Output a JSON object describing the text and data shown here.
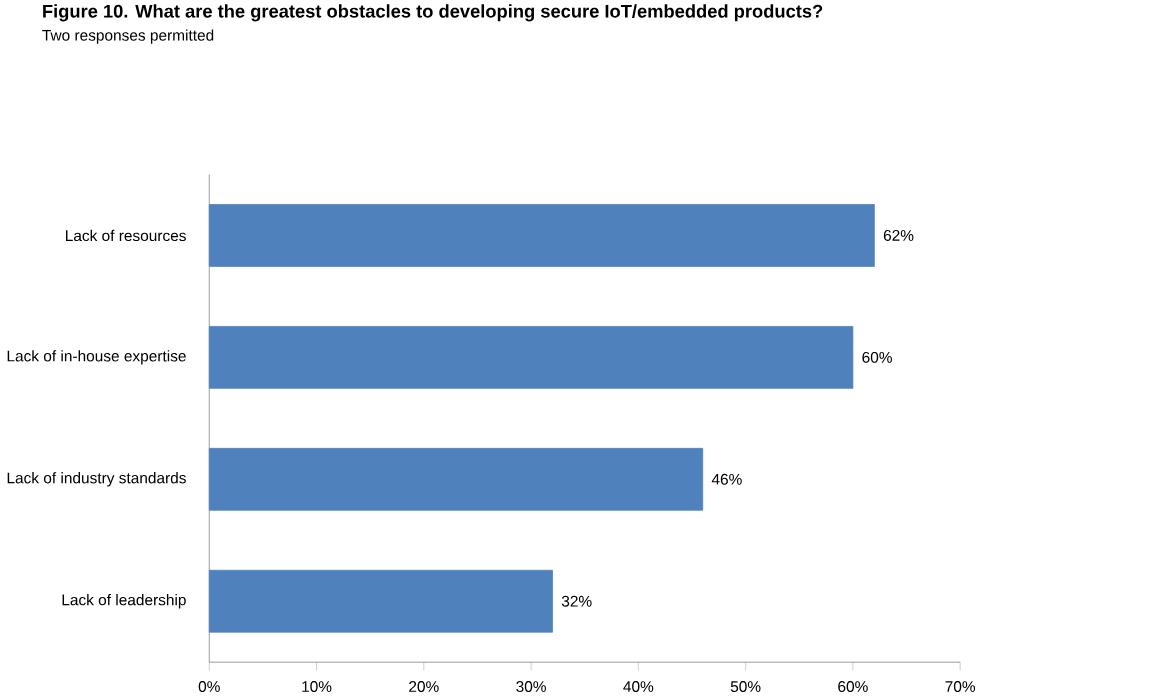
{
  "chart_data": {
    "type": "bar",
    "orientation": "horizontal",
    "title": "Figure 10. What are the greatest obstacles to developing secure IoT/embedded products?",
    "subtitle": "Two responses permitted",
    "categories": [
      "Lack of resources",
      "Lack of in-house expertise",
      "Lack of industry standards",
      "Lack of leadership"
    ],
    "values": [
      62,
      60,
      46,
      32
    ],
    "value_labels": [
      "62%",
      "60%",
      "46%",
      "32%"
    ],
    "color": "#4f81bd",
    "xlim": [
      0,
      70
    ],
    "xticks": [
      {
        "value": 0,
        "label": "0%"
      },
      {
        "value": 10,
        "label": "10%"
      },
      {
        "value": 20,
        "label": "20%"
      },
      {
        "value": 30,
        "label": "30%"
      },
      {
        "value": 40,
        "label": "40%"
      },
      {
        "value": 50,
        "label": "50%"
      },
      {
        "value": 60,
        "label": "60%"
      },
      {
        "value": 70,
        "label": "70%"
      }
    ]
  }
}
